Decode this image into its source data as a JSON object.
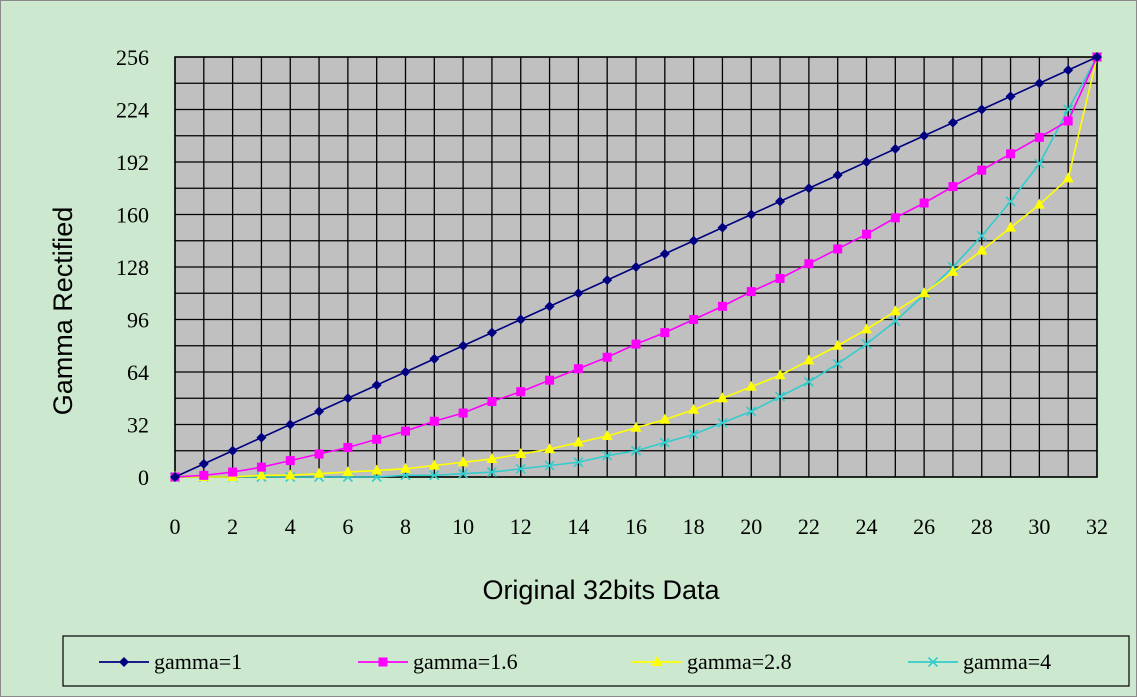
{
  "chart_data": {
    "type": "line",
    "title": "",
    "xlabel": "Original  32bits Data",
    "ylabel": "Gamma Rectified",
    "xlim": [
      0,
      32
    ],
    "ylim": [
      0,
      256
    ],
    "x_ticks": [
      0,
      2,
      4,
      6,
      8,
      10,
      12,
      14,
      16,
      18,
      20,
      22,
      24,
      26,
      28,
      30,
      32
    ],
    "y_ticks": [
      0,
      32,
      64,
      96,
      128,
      160,
      192,
      224,
      256
    ],
    "grid": true,
    "plot_background": "#c0c0c0",
    "legend_position": "bottom",
    "x": [
      0,
      1,
      2,
      3,
      4,
      5,
      6,
      7,
      8,
      9,
      10,
      11,
      12,
      13,
      14,
      15,
      16,
      17,
      18,
      19,
      20,
      21,
      22,
      23,
      24,
      25,
      26,
      27,
      28,
      29,
      30,
      31,
      32
    ],
    "series": [
      {
        "name": "gamma=1",
        "color": "#000080",
        "marker": "diamond",
        "values": [
          0,
          8,
          16,
          24,
          32,
          40,
          48,
          56,
          64,
          72,
          80,
          88,
          96,
          104,
          112,
          120,
          128,
          136,
          144,
          152,
          160,
          168,
          176,
          184,
          192,
          200,
          208,
          216,
          224,
          232,
          240,
          248,
          256
        ]
      },
      {
        "name": "gamma=1.6",
        "color": "#ff00ff",
        "marker": "square",
        "values": [
          0,
          1,
          3,
          6,
          10,
          14,
          18,
          23,
          28,
          34,
          39,
          46,
          52,
          59,
          66,
          73,
          81,
          88,
          96,
          104,
          113,
          121,
          130,
          139,
          148,
          158,
          167,
          177,
          187,
          197,
          207,
          217,
          256
        ]
      },
      {
        "name": "gamma=2.8",
        "color": "#ffff00",
        "marker": "triangle",
        "values": [
          0,
          0,
          0,
          1,
          1,
          2,
          3,
          4,
          5,
          7,
          9,
          11,
          14,
          17,
          21,
          25,
          30,
          35,
          41,
          48,
          55,
          62,
          71,
          80,
          90,
          101,
          112,
          125,
          138,
          152,
          166,
          182,
          256
        ]
      },
      {
        "name": "gamma=4",
        "color": "#33cccc",
        "marker": "x",
        "values": [
          0,
          0,
          0,
          0,
          0,
          0,
          0,
          0,
          1,
          1,
          2,
          3,
          5,
          7,
          9,
          13,
          16,
          21,
          26,
          33,
          40,
          49,
          58,
          69,
          81,
          95,
          111,
          128,
          147,
          168,
          191,
          224,
          256
        ]
      }
    ]
  }
}
